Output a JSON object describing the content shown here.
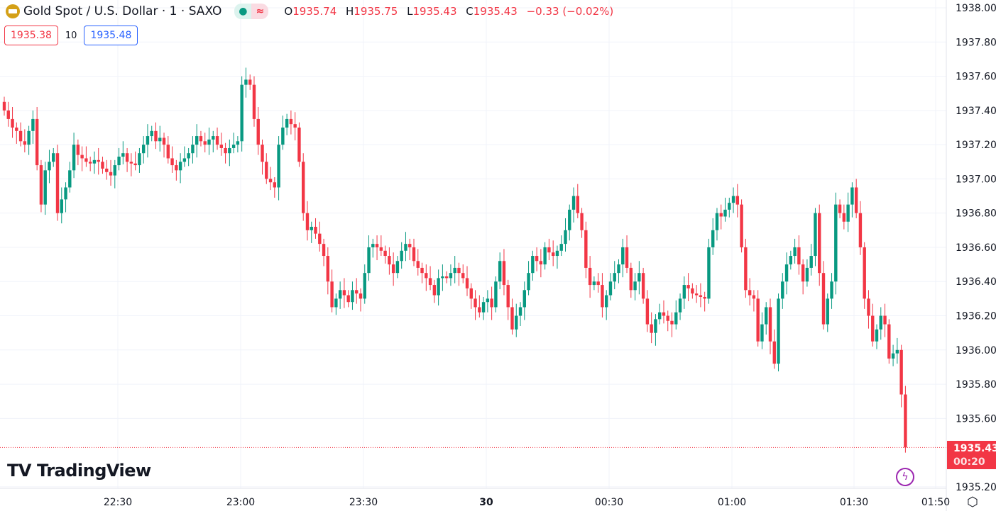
{
  "header": {
    "symbol_title": "Gold Spot / U.S. Dollar · 1 · SAXO",
    "logo_icon": "gold-bars-icon",
    "market_status_icon": "dot-icon",
    "data_mode_icon": "approx-icon",
    "ohlc": {
      "o_label": "O",
      "o": "1935.74",
      "h_label": "H",
      "h": "1935.75",
      "l_label": "L",
      "l": "1935.43",
      "c_label": "C",
      "c": "1935.43",
      "change": "−0.33 (−0.02%)"
    },
    "bid": "1935.38",
    "spread": "10",
    "ask": "1935.48"
  },
  "branding": {
    "name": "TradingView"
  },
  "last_price": {
    "price": "1935.43",
    "countdown": "00:20"
  },
  "colors": {
    "up": "#089981",
    "down": "#f23645",
    "grid": "#f0f3fa",
    "text": "#131722"
  },
  "chart_data": {
    "type": "candlestick",
    "title": "Gold Spot / U.S. Dollar · 1 · SAXO",
    "interval_minutes": 1,
    "ylim": [
      1935.2,
      1938.0
    ],
    "grid": true,
    "y_ticks": [
      "1938.00",
      "1937.80",
      "1937.60",
      "1937.40",
      "1937.20",
      "1937.00",
      "1936.80",
      "1936.60",
      "1936.40",
      "1936.20",
      "1936.00",
      "1935.80",
      "1935.60",
      "1935.20"
    ],
    "x_ticks": [
      {
        "label": "22:30",
        "bold": false
      },
      {
        "label": "23:00",
        "bold": false
      },
      {
        "label": "23:30",
        "bold": false
      },
      {
        "label": "30",
        "bold": true
      },
      {
        "label": "00:30",
        "bold": false
      },
      {
        "label": "01:00",
        "bold": false
      },
      {
        "label": "01:30",
        "bold": false
      },
      {
        "label": "01:50",
        "bold": false
      }
    ],
    "first_open": 1937.45,
    "close": [
      1937.4,
      1937.35,
      1937.3,
      1937.28,
      1937.22,
      1937.2,
      1937.28,
      1937.35,
      1937.08,
      1936.85,
      1937.05,
      1937.1,
      1937.15,
      1936.8,
      1936.88,
      1936.95,
      1937.05,
      1937.2,
      1937.14,
      1937.12,
      1937.1,
      1937.09,
      1937.11,
      1937.1,
      1937.06,
      1937.04,
      1937.02,
      1937.08,
      1937.13,
      1937.15,
      1937.1,
      1937.09,
      1937.08,
      1937.15,
      1937.2,
      1937.25,
      1937.28,
      1937.22,
      1937.24,
      1937.2,
      1937.12,
      1937.08,
      1937.05,
      1937.1,
      1937.12,
      1937.15,
      1937.2,
      1937.25,
      1937.22,
      1937.2,
      1937.23,
      1937.25,
      1937.2,
      1937.18,
      1937.15,
      1937.18,
      1937.2,
      1937.22,
      1937.55,
      1937.58,
      1937.55,
      1937.35,
      1937.2,
      1937.1,
      1937.0,
      1936.98,
      1936.95,
      1937.2,
      1937.3,
      1937.35,
      1937.32,
      1937.3,
      1937.1,
      1936.8,
      1936.7,
      1936.72,
      1936.68,
      1936.62,
      1936.55,
      1936.4,
      1936.25,
      1936.3,
      1936.35,
      1936.32,
      1936.28,
      1936.35,
      1936.33,
      1936.3,
      1936.45,
      1936.6,
      1936.62,
      1936.6,
      1936.58,
      1936.55,
      1936.5,
      1936.45,
      1936.52,
      1936.58,
      1936.62,
      1936.6,
      1936.52,
      1936.48,
      1936.45,
      1936.42,
      1936.38,
      1936.32,
      1936.42,
      1936.43,
      1936.42,
      1936.45,
      1936.48,
      1936.45,
      1936.42,
      1936.36,
      1936.3,
      1936.25,
      1936.22,
      1936.28,
      1936.3,
      1936.25,
      1936.4,
      1936.52,
      1936.38,
      1936.25,
      1936.12,
      1936.2,
      1936.25,
      1936.35,
      1936.45,
      1936.55,
      1936.52,
      1936.5,
      1936.6,
      1936.57,
      1936.55,
      1936.58,
      1936.62,
      1936.7,
      1936.82,
      1936.9,
      1936.8,
      1936.7,
      1936.48,
      1936.38,
      1936.4,
      1936.38,
      1936.25,
      1936.32,
      1936.4,
      1936.45,
      1936.5,
      1936.6,
      1936.48,
      1936.35,
      1936.4,
      1936.45,
      1936.3,
      1936.15,
      1936.1,
      1936.18,
      1936.22,
      1936.2,
      1936.17,
      1936.15,
      1936.22,
      1936.3,
      1936.38,
      1936.36,
      1936.33,
      1936.32,
      1936.31,
      1936.3,
      1936.6,
      1936.7,
      1936.8,
      1936.78,
      1936.82,
      1936.86,
      1936.9,
      1936.85,
      1936.6,
      1936.35,
      1936.32,
      1936.3,
      1936.05,
      1936.15,
      1936.25,
      1936.05,
      1935.92,
      1936.3,
      1936.4,
      1936.5,
      1936.55,
      1936.6,
      1936.5,
      1936.4,
      1936.48,
      1936.55,
      1936.8,
      1936.45,
      1936.15,
      1936.3,
      1936.4,
      1936.85,
      1936.8,
      1936.75,
      1936.85,
      1936.95,
      1936.8,
      1936.6,
      1936.3,
      1936.2,
      1936.05,
      1936.12,
      1936.2,
      1936.15,
      1935.95,
      1935.98,
      1936.0,
      1935.74,
      1935.43
    ]
  }
}
